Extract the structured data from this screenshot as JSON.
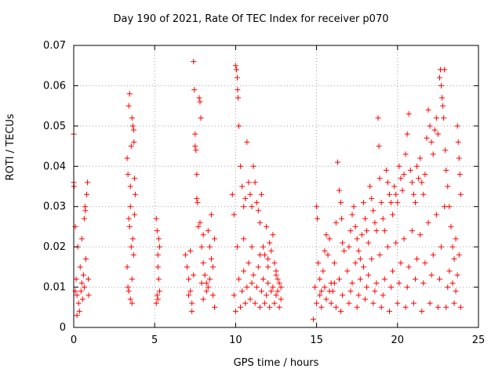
{
  "chart_data": {
    "type": "scatter",
    "title": "Day 190 of 2021, Rate Of TEC Index for receiver p070",
    "xlabel": "GPS time / hours",
    "ylabel": "ROTI / TECUs",
    "xlim": [
      0,
      25
    ],
    "ylim": [
      0,
      0.07
    ],
    "xticks": [
      "0",
      "5",
      "10",
      "15",
      "20",
      "25"
    ],
    "yticks": [
      "0",
      "0.01",
      "0.02",
      "0.03",
      "0.04",
      "0.05",
      "0.06",
      "0.07"
    ],
    "grid": true,
    "marker": "+",
    "series_color": "#ff0000",
    "points": [
      [
        0.0,
        0.048
      ],
      [
        0.0,
        0.036
      ],
      [
        0.02,
        0.035
      ],
      [
        0.1,
        0.025
      ],
      [
        0.15,
        0.012
      ],
      [
        0.2,
        0.008
      ],
      [
        0.25,
        0.02
      ],
      [
        0.3,
        0.006
      ],
      [
        0.35,
        0.004
      ],
      [
        0.4,
        0.015
      ],
      [
        0.45,
        0.009
      ],
      [
        0.5,
        0.011
      ],
      [
        0.55,
        0.007
      ],
      [
        0.6,
        0.013
      ],
      [
        0.65,
        0.01
      ],
      [
        0.7,
        0.03
      ],
      [
        0.72,
        0.029
      ],
      [
        0.75,
        0.017
      ],
      [
        0.8,
        0.033
      ],
      [
        0.85,
        0.036
      ],
      [
        0.9,
        0.012
      ],
      [
        0.92,
        0.008
      ],
      [
        0.2,
        0.003
      ],
      [
        0.1,
        0.009
      ],
      [
        0.5,
        0.022
      ],
      [
        0.65,
        0.027
      ],
      [
        3.3,
        0.042
      ],
      [
        3.35,
        0.038
      ],
      [
        3.4,
        0.055
      ],
      [
        3.45,
        0.058
      ],
      [
        3.5,
        0.03
      ],
      [
        3.55,
        0.02
      ],
      [
        3.6,
        0.012
      ],
      [
        3.65,
        0.05
      ],
      [
        3.7,
        0.049
      ],
      [
        3.72,
        0.046
      ],
      [
        3.75,
        0.037
      ],
      [
        3.8,
        0.033
      ],
      [
        3.4,
        0.009
      ],
      [
        3.5,
        0.007
      ],
      [
        3.6,
        0.006
      ],
      [
        3.3,
        0.015
      ],
      [
        3.45,
        0.025
      ],
      [
        3.55,
        0.045
      ],
      [
        3.65,
        0.022
      ],
      [
        3.7,
        0.018
      ],
      [
        3.75,
        0.028
      ],
      [
        3.35,
        0.01
      ],
      [
        3.6,
        0.052
      ],
      [
        3.5,
        0.035
      ],
      [
        3.4,
        0.027
      ],
      [
        5.1,
        0.027
      ],
      [
        5.15,
        0.024
      ],
      [
        5.2,
        0.018
      ],
      [
        5.25,
        0.012
      ],
      [
        5.3,
        0.009
      ],
      [
        5.2,
        0.007
      ],
      [
        5.15,
        0.008
      ],
      [
        5.25,
        0.022
      ],
      [
        5.1,
        0.006
      ],
      [
        5.2,
        0.015
      ],
      [
        5.3,
        0.02
      ],
      [
        6.9,
        0.018
      ],
      [
        7.0,
        0.015
      ],
      [
        7.1,
        0.012
      ],
      [
        7.2,
        0.009
      ],
      [
        7.3,
        0.006
      ],
      [
        7.4,
        0.066
      ],
      [
        7.45,
        0.059
      ],
      [
        7.5,
        0.045
      ],
      [
        7.55,
        0.044
      ],
      [
        7.6,
        0.038
      ],
      [
        7.65,
        0.031
      ],
      [
        7.7,
        0.025
      ],
      [
        7.75,
        0.057
      ],
      [
        7.8,
        0.056
      ],
      [
        7.85,
        0.052
      ],
      [
        7.9,
        0.02
      ],
      [
        8.0,
        0.016
      ],
      [
        8.1,
        0.013
      ],
      [
        8.2,
        0.011
      ],
      [
        8.3,
        0.01
      ],
      [
        8.4,
        0.02
      ],
      [
        8.5,
        0.017
      ],
      [
        8.6,
        0.008
      ],
      [
        8.7,
        0.005
      ],
      [
        7.5,
        0.048
      ],
      [
        7.3,
        0.004
      ],
      [
        7.8,
        0.026
      ],
      [
        8.0,
        0.023
      ],
      [
        8.3,
        0.024
      ],
      [
        8.5,
        0.028
      ],
      [
        8.7,
        0.022
      ],
      [
        7.2,
        0.019
      ],
      [
        7.6,
        0.032
      ],
      [
        7.4,
        0.013
      ],
      [
        8.0,
        0.007
      ],
      [
        8.2,
        0.009
      ],
      [
        8.4,
        0.012
      ],
      [
        8.6,
        0.015
      ],
      [
        7.1,
        0.008
      ],
      [
        7.9,
        0.011
      ],
      [
        9.8,
        0.033
      ],
      [
        9.9,
        0.028
      ],
      [
        10.0,
        0.065
      ],
      [
        10.05,
        0.064
      ],
      [
        10.1,
        0.062
      ],
      [
        10.12,
        0.059
      ],
      [
        10.15,
        0.057
      ],
      [
        10.2,
        0.05
      ],
      [
        10.3,
        0.04
      ],
      [
        10.4,
        0.035
      ],
      [
        10.5,
        0.03
      ],
      [
        10.6,
        0.032
      ],
      [
        10.7,
        0.046
      ],
      [
        10.8,
        0.036
      ],
      [
        10.9,
        0.033
      ],
      [
        11.0,
        0.03
      ],
      [
        11.1,
        0.04
      ],
      [
        11.2,
        0.036
      ],
      [
        11.3,
        0.031
      ],
      [
        11.4,
        0.029
      ],
      [
        11.5,
        0.026
      ],
      [
        11.6,
        0.033
      ],
      [
        11.7,
        0.02
      ],
      [
        11.8,
        0.018
      ],
      [
        11.9,
        0.025
      ],
      [
        12.0,
        0.015
      ],
      [
        12.1,
        0.021
      ],
      [
        12.2,
        0.019
      ],
      [
        12.3,
        0.023
      ],
      [
        12.4,
        0.016
      ],
      [
        12.5,
        0.013
      ],
      [
        12.6,
        0.012
      ],
      [
        12.7,
        0.011
      ],
      [
        12.8,
        0.01
      ],
      [
        10.0,
        0.004
      ],
      [
        10.3,
        0.005
      ],
      [
        10.6,
        0.006
      ],
      [
        10.9,
        0.007
      ],
      [
        11.2,
        0.006
      ],
      [
        11.5,
        0.005
      ],
      [
        11.8,
        0.006
      ],
      [
        12.1,
        0.005
      ],
      [
        12.4,
        0.006
      ],
      [
        12.7,
        0.005
      ],
      [
        10.2,
        0.012
      ],
      [
        10.5,
        0.014
      ],
      [
        10.8,
        0.016
      ],
      [
        11.1,
        0.013
      ],
      [
        11.4,
        0.015
      ],
      [
        11.7,
        0.012
      ],
      [
        12.0,
        0.011
      ],
      [
        12.3,
        0.01
      ],
      [
        12.6,
        0.009
      ],
      [
        9.9,
        0.008
      ],
      [
        10.4,
        0.009
      ],
      [
        10.7,
        0.01
      ],
      [
        11.0,
        0.011
      ],
      [
        11.3,
        0.01
      ],
      [
        11.6,
        0.009
      ],
      [
        11.9,
        0.008
      ],
      [
        12.2,
        0.009
      ],
      [
        12.5,
        0.008
      ],
      [
        12.8,
        0.007
      ],
      [
        10.1,
        0.02
      ],
      [
        10.5,
        0.022
      ],
      [
        11.0,
        0.02
      ],
      [
        11.5,
        0.018
      ],
      [
        12.0,
        0.017
      ],
      [
        12.5,
        0.014
      ],
      [
        14.8,
        0.002
      ],
      [
        14.9,
        0.01
      ],
      [
        15.0,
        0.03
      ],
      [
        15.05,
        0.027
      ],
      [
        15.1,
        0.016
      ],
      [
        15.2,
        0.012
      ],
      [
        15.3,
        0.009
      ],
      [
        15.4,
        0.014
      ],
      [
        15.5,
        0.019
      ],
      [
        15.6,
        0.023
      ],
      [
        15.7,
        0.018
      ],
      [
        15.8,
        0.022
      ],
      [
        15.9,
        0.011
      ],
      [
        16.0,
        0.009
      ],
      [
        16.1,
        0.016
      ],
      [
        16.2,
        0.026
      ],
      [
        16.3,
        0.041
      ],
      [
        16.4,
        0.034
      ],
      [
        16.5,
        0.031
      ],
      [
        16.55,
        0.027
      ],
      [
        16.6,
        0.021
      ],
      [
        16.7,
        0.019
      ],
      [
        15.0,
        0.006
      ],
      [
        15.3,
        0.005
      ],
      [
        15.6,
        0.007
      ],
      [
        15.9,
        0.006
      ],
      [
        16.2,
        0.005
      ],
      [
        16.5,
        0.004
      ],
      [
        16.6,
        0.008
      ],
      [
        15.2,
        0.008
      ],
      [
        15.5,
        0.01
      ],
      [
        15.8,
        0.009
      ],
      [
        16.1,
        0.011
      ],
      [
        16.4,
        0.012
      ],
      [
        16.9,
        0.014
      ],
      [
        17.0,
        0.02
      ],
      [
        17.1,
        0.024
      ],
      [
        17.2,
        0.028
      ],
      [
        17.3,
        0.03
      ],
      [
        17.4,
        0.025
      ],
      [
        17.5,
        0.022
      ],
      [
        17.6,
        0.019
      ],
      [
        17.7,
        0.017
      ],
      [
        17.8,
        0.023
      ],
      [
        17.9,
        0.031
      ],
      [
        18.0,
        0.027
      ],
      [
        18.1,
        0.024
      ],
      [
        18.2,
        0.021
      ],
      [
        18.3,
        0.035
      ],
      [
        18.4,
        0.032
      ],
      [
        18.5,
        0.029
      ],
      [
        18.6,
        0.026
      ],
      [
        18.7,
        0.024
      ],
      [
        18.8,
        0.052
      ],
      [
        18.85,
        0.045
      ],
      [
        18.9,
        0.037
      ],
      [
        19.0,
        0.031
      ],
      [
        19.1,
        0.027
      ],
      [
        19.2,
        0.024
      ],
      [
        19.3,
        0.039
      ],
      [
        19.4,
        0.036
      ],
      [
        19.5,
        0.033
      ],
      [
        19.6,
        0.031
      ],
      [
        19.7,
        0.028
      ],
      [
        19.8,
        0.035
      ],
      [
        19.9,
        0.033
      ],
      [
        20.0,
        0.031
      ],
      [
        20.1,
        0.04
      ],
      [
        20.2,
        0.037
      ],
      [
        20.3,
        0.034
      ],
      [
        20.4,
        0.038
      ],
      [
        20.5,
        0.043
      ],
      [
        20.6,
        0.048
      ],
      [
        20.7,
        0.053
      ],
      [
        20.8,
        0.039
      ],
      [
        20.9,
        0.036
      ],
      [
        21.0,
        0.033
      ],
      [
        21.1,
        0.031
      ],
      [
        21.2,
        0.04
      ],
      [
        21.3,
        0.037
      ],
      [
        21.4,
        0.042
      ],
      [
        21.5,
        0.036
      ],
      [
        21.6,
        0.033
      ],
      [
        21.7,
        0.038
      ],
      [
        21.8,
        0.047
      ],
      [
        21.9,
        0.054
      ],
      [
        22.0,
        0.05
      ],
      [
        22.1,
        0.046
      ],
      [
        22.2,
        0.043
      ],
      [
        22.3,
        0.049
      ],
      [
        22.4,
        0.052
      ],
      [
        22.5,
        0.048
      ],
      [
        22.6,
        0.062
      ],
      [
        22.65,
        0.064
      ],
      [
        22.7,
        0.06
      ],
      [
        22.75,
        0.057
      ],
      [
        22.8,
        0.055
      ],
      [
        22.85,
        0.052
      ],
      [
        22.9,
        0.064
      ],
      [
        22.95,
        0.044
      ],
      [
        23.0,
        0.039
      ],
      [
        23.1,
        0.035
      ],
      [
        23.2,
        0.03
      ],
      [
        23.3,
        0.025
      ],
      [
        23.4,
        0.02
      ],
      [
        23.5,
        0.017
      ],
      [
        23.6,
        0.022
      ],
      [
        23.7,
        0.05
      ],
      [
        23.75,
        0.046
      ],
      [
        23.8,
        0.042
      ],
      [
        23.85,
        0.038
      ],
      [
        23.9,
        0.033
      ],
      [
        17.0,
        0.006
      ],
      [
        17.5,
        0.005
      ],
      [
        18.0,
        0.007
      ],
      [
        18.5,
        0.006
      ],
      [
        19.0,
        0.005
      ],
      [
        19.5,
        0.004
      ],
      [
        20.0,
        0.006
      ],
      [
        20.5,
        0.005
      ],
      [
        21.0,
        0.006
      ],
      [
        21.5,
        0.004
      ],
      [
        22.0,
        0.006
      ],
      [
        22.5,
        0.005
      ],
      [
        23.0,
        0.005
      ],
      [
        23.5,
        0.006
      ],
      [
        23.9,
        0.005
      ],
      [
        17.2,
        0.011
      ],
      [
        17.7,
        0.012
      ],
      [
        18.2,
        0.013
      ],
      [
        18.7,
        0.011
      ],
      [
        19.2,
        0.012
      ],
      [
        19.7,
        0.014
      ],
      [
        20.2,
        0.016
      ],
      [
        20.7,
        0.015
      ],
      [
        21.2,
        0.017
      ],
      [
        21.7,
        0.016
      ],
      [
        22.2,
        0.018
      ],
      [
        22.7,
        0.02
      ],
      [
        23.2,
        0.014
      ],
      [
        23.7,
        0.013
      ],
      [
        17.4,
        0.016
      ],
      [
        17.9,
        0.015
      ],
      [
        18.4,
        0.017
      ],
      [
        18.9,
        0.018
      ],
      [
        19.4,
        0.02
      ],
      [
        19.9,
        0.021
      ],
      [
        20.4,
        0.022
      ],
      [
        20.9,
        0.024
      ],
      [
        21.4,
        0.023
      ],
      [
        21.9,
        0.026
      ],
      [
        22.4,
        0.028
      ],
      [
        22.9,
        0.03
      ],
      [
        23.4,
        0.011
      ],
      [
        23.8,
        0.018
      ],
      [
        17.1,
        0.009
      ],
      [
        17.6,
        0.008
      ],
      [
        18.1,
        0.01
      ],
      [
        18.6,
        0.009
      ],
      [
        19.1,
        0.008
      ],
      [
        19.6,
        0.01
      ],
      [
        20.1,
        0.011
      ],
      [
        20.6,
        0.01
      ],
      [
        21.1,
        0.012
      ],
      [
        21.6,
        0.011
      ],
      [
        22.1,
        0.013
      ],
      [
        22.6,
        0.012
      ],
      [
        23.1,
        0.01
      ],
      [
        23.6,
        0.009
      ]
    ]
  }
}
